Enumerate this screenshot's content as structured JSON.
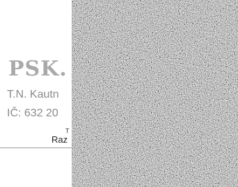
{
  "header": {
    "logo": "PSK.",
    "line1": "T.N. Kautn",
    "line2": "IČ: 632 20",
    "line3": "T",
    "line4": "Raz"
  }
}
